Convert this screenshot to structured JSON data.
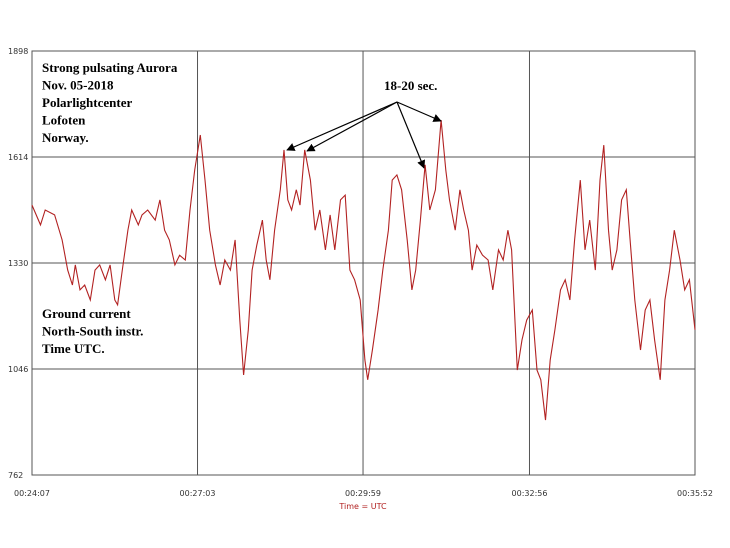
{
  "chart_data": {
    "type": "line",
    "x_label": "Time = UTC",
    "notes_top": [
      "Strong pulsating Aurora",
      "Nov. 05-2018",
      "Polarlightcenter",
      "Lofoten",
      "Norway."
    ],
    "notes_bottom": [
      "Ground current",
      "North-South instr.",
      "Time UTC."
    ],
    "arrow_label": "18-20 sec.",
    "xlim": [
      1447,
      2152
    ],
    "xticks": [
      {
        "value": 1447,
        "label": "00:24:07"
      },
      {
        "value": 1623,
        "label": "00:27:03"
      },
      {
        "value": 1799,
        "label": "00:29:59"
      },
      {
        "value": 1976,
        "label": "00:32:56"
      },
      {
        "value": 2152,
        "label": "00:35:52"
      }
    ],
    "ylim": [
      762,
      1898
    ],
    "yticks": [
      762,
      1046,
      1330,
      1614,
      1898
    ],
    "grid": true,
    "series": [
      {
        "color": "#b22222",
        "x": [
          1447,
          1456,
          1461,
          1471,
          1479,
          1485,
          1490,
          1493,
          1498,
          1503,
          1509,
          1514,
          1519,
          1525,
          1530,
          1535,
          1538,
          1543,
          1549,
          1553,
          1560,
          1564,
          1570,
          1578,
          1583,
          1588,
          1593,
          1599,
          1604,
          1610,
          1615,
          1620,
          1626,
          1631,
          1636,
          1642,
          1647,
          1652,
          1658,
          1663,
          1668,
          1672,
          1677,
          1681,
          1686,
          1692,
          1696,
          1700,
          1705,
          1711,
          1715,
          1719,
          1723,
          1728,
          1732,
          1737,
          1743,
          1748,
          1753,
          1759,
          1764,
          1769,
          1775,
          1780,
          1785,
          1790,
          1796,
          1801,
          1804,
          1809,
          1815,
          1820,
          1826,
          1830,
          1835,
          1840,
          1846,
          1851,
          1855,
          1860,
          1865,
          1870,
          1876,
          1882,
          1887,
          1891,
          1897,
          1902,
          1906,
          1911,
          1915,
          1920,
          1926,
          1932,
          1937,
          1943,
          1948,
          1953,
          1957,
          1963,
          1968,
          1973,
          1979,
          1984,
          1988,
          1993,
          1998,
          2003,
          2009,
          2014,
          2019,
          2024,
          2030,
          2035,
          2040,
          2046,
          2051,
          2055,
          2060,
          2064,
          2069,
          2074,
          2079,
          2083,
          2088,
          2094,
          2099,
          2104,
          2109,
          2115,
          2120,
          2125,
          2130,
          2136,
          2141,
          2146,
          2152
        ],
        "values": [
          1485,
          1432,
          1472,
          1459,
          1392,
          1311,
          1271,
          1325,
          1258,
          1271,
          1231,
          1311,
          1325,
          1285,
          1325,
          1231,
          1218,
          1311,
          1418,
          1472,
          1432,
          1459,
          1472,
          1445,
          1499,
          1418,
          1392,
          1325,
          1351,
          1338,
          1472,
          1579,
          1673,
          1552,
          1418,
          1325,
          1271,
          1338,
          1311,
          1392,
          1177,
          1030,
          1151,
          1311,
          1378,
          1445,
          1338,
          1285,
          1418,
          1526,
          1633,
          1499,
          1472,
          1526,
          1485,
          1633,
          1552,
          1418,
          1472,
          1365,
          1459,
          1365,
          1499,
          1512,
          1311,
          1285,
          1231,
          1070,
          1017,
          1097,
          1204,
          1311,
          1418,
          1552,
          1566,
          1526,
          1392,
          1258,
          1311,
          1445,
          1593,
          1472,
          1526,
          1713,
          1579,
          1499,
          1418,
          1526,
          1472,
          1418,
          1311,
          1378,
          1351,
          1338,
          1258,
          1365,
          1338,
          1418,
          1365,
          1043,
          1124,
          1177,
          1204,
          1043,
          1017,
          909,
          1070,
          1151,
          1258,
          1285,
          1231,
          1392,
          1552,
          1365,
          1445,
          1311,
          1552,
          1646,
          1418,
          1311,
          1365,
          1499,
          1526,
          1392,
          1231,
          1097,
          1204,
          1231,
          1124,
          1017,
          1231,
          1311,
          1418,
          1338,
          1258,
          1285,
          1151
        ]
      }
    ]
  }
}
